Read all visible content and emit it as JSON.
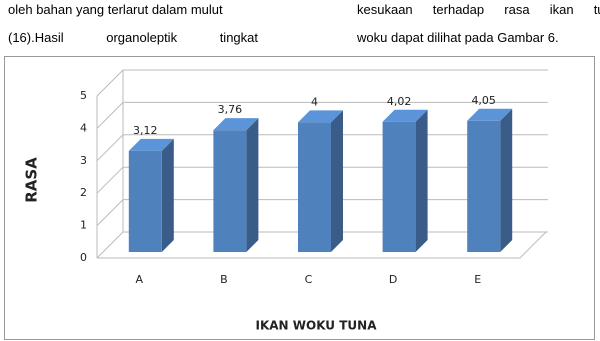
{
  "text": {
    "left": [
      "oleh bahan yang terlarut dalam mulut",
      "(16).Hasil organoleptik tingkat"
    ],
    "right": [
      "kesukaan terhadap rasa ikan tuna",
      "woku dapat dilihat pada Gambar 6."
    ]
  },
  "chart_data": {
    "type": "bar3d",
    "y_label": "RASA",
    "x_label": "IKAN WOKU TUNA",
    "categories": [
      "A",
      "B",
      "C",
      "D",
      "E"
    ],
    "values": [
      3.12,
      3.76,
      4,
      4.02,
      4.05
    ],
    "value_labels": [
      "3,12",
      "3,76",
      "4",
      "4,02",
      "4,05"
    ],
    "color": "#4f81bd",
    "ylim": [
      0,
      5
    ],
    "yticks": [
      0,
      1,
      2,
      3,
      4,
      5
    ],
    "grid": true
  }
}
